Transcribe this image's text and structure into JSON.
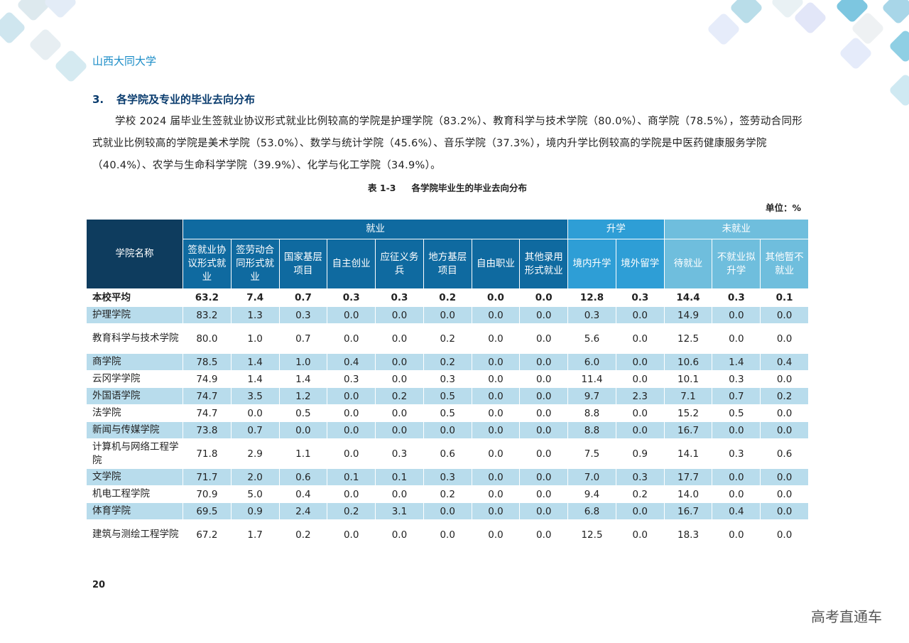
{
  "header": {
    "university": "山西大同大学"
  },
  "section": {
    "number": "3.",
    "title": "各学院及专业的毕业去向分布",
    "paragraph": "学校 2024 届毕业生签就业协议形式就业比例较高的学院是护理学院（83.2%）、教育科学与技术学院（80.0%）、商学院（78.5%），签劳动合同形式就业比例较高的学院是美术学院（53.0%）、数学与统计学院（45.6%）、音乐学院（37.3%），境内升学比例较高的学院是中医药健康服务学院（40.4%）、农学与生命科学学院（39.9%）、化学与化工学院（34.9%）。"
  },
  "table": {
    "caption_no": "表 1-3",
    "caption_title": "各学院毕业生的毕业去向分布",
    "unit": "单位：%",
    "corner_header": "学院名称",
    "group_headers": [
      "就业",
      "升学",
      "未就业"
    ],
    "sub_headers": [
      "签就业协议形式就业",
      "签劳动合同形式就业",
      "国家基层项目",
      "自主创业",
      "应征义务兵",
      "地方基层项目",
      "自由职业",
      "其他录用形式就业",
      "境内升学",
      "境外留学",
      "待就业",
      "不就业拟升学",
      "其他暂不就业"
    ],
    "rows": [
      {
        "name": "本校平均",
        "values": [
          "63.2",
          "7.4",
          "0.7",
          "0.3",
          "0.3",
          "0.2",
          "0.0",
          "0.0",
          "12.8",
          "0.3",
          "14.4",
          "0.3",
          "0.1"
        ]
      },
      {
        "name": "护理学院",
        "values": [
          "83.2",
          "1.3",
          "0.3",
          "0.0",
          "0.0",
          "0.0",
          "0.0",
          "0.0",
          "0.3",
          "0.0",
          "14.9",
          "0.0",
          "0.0"
        ]
      },
      {
        "name": "教育科学与技术学院",
        "values": [
          "80.0",
          "1.0",
          "0.7",
          "0.0",
          "0.0",
          "0.2",
          "0.0",
          "0.0",
          "5.6",
          "0.0",
          "12.5",
          "0.0",
          "0.0"
        ]
      },
      {
        "name": "商学院",
        "values": [
          "78.5",
          "1.4",
          "1.0",
          "0.4",
          "0.0",
          "0.2",
          "0.0",
          "0.0",
          "6.0",
          "0.0",
          "10.6",
          "1.4",
          "0.4"
        ]
      },
      {
        "name": "云冈学学院",
        "values": [
          "74.9",
          "1.4",
          "1.4",
          "0.3",
          "0.0",
          "0.3",
          "0.0",
          "0.0",
          "11.4",
          "0.0",
          "10.1",
          "0.3",
          "0.0"
        ]
      },
      {
        "name": "外国语学院",
        "values": [
          "74.7",
          "3.5",
          "1.2",
          "0.0",
          "0.2",
          "0.5",
          "0.0",
          "0.0",
          "9.7",
          "2.3",
          "7.1",
          "0.7",
          "0.2"
        ]
      },
      {
        "name": "法学院",
        "values": [
          "74.7",
          "0.0",
          "0.5",
          "0.0",
          "0.0",
          "0.5",
          "0.0",
          "0.0",
          "8.8",
          "0.0",
          "15.2",
          "0.5",
          "0.0"
        ]
      },
      {
        "name": "新闻与传媒学院",
        "values": [
          "73.8",
          "0.7",
          "0.0",
          "0.0",
          "0.0",
          "0.0",
          "0.0",
          "0.0",
          "8.8",
          "0.0",
          "16.7",
          "0.0",
          "0.0"
        ]
      },
      {
        "name": "计算机与网络工程学院",
        "values": [
          "71.8",
          "2.9",
          "1.1",
          "0.0",
          "0.3",
          "0.6",
          "0.0",
          "0.0",
          "7.5",
          "0.9",
          "14.1",
          "0.3",
          "0.6"
        ]
      },
      {
        "name": "文学院",
        "values": [
          "71.7",
          "2.0",
          "0.6",
          "0.1",
          "0.1",
          "0.3",
          "0.0",
          "0.0",
          "7.0",
          "0.3",
          "17.7",
          "0.0",
          "0.0"
        ]
      },
      {
        "name": "机电工程学院",
        "values": [
          "70.9",
          "5.0",
          "0.4",
          "0.0",
          "0.0",
          "0.2",
          "0.0",
          "0.0",
          "9.4",
          "0.2",
          "14.0",
          "0.0",
          "0.0"
        ]
      },
      {
        "name": "体育学院",
        "values": [
          "69.5",
          "0.9",
          "2.4",
          "0.2",
          "3.1",
          "0.0",
          "0.0",
          "0.0",
          "6.8",
          "0.0",
          "16.7",
          "0.4",
          "0.0"
        ]
      },
      {
        "name": "建筑与测绘工程学院",
        "values": [
          "67.2",
          "1.7",
          "0.2",
          "0.0",
          "0.0",
          "0.0",
          "0.0",
          "0.0",
          "12.5",
          "0.0",
          "18.3",
          "0.0",
          "0.0"
        ]
      }
    ]
  },
  "footer": {
    "page_number": "20",
    "watermark": "高考直通车"
  },
  "colors": {
    "accent": "#1a8cc7",
    "corner": "#0e3c5e",
    "employment": "#0f6aa0",
    "study": "#2e9ed6",
    "unemployed": "#6fbedd",
    "row_highlight": "#b8dcec"
  }
}
